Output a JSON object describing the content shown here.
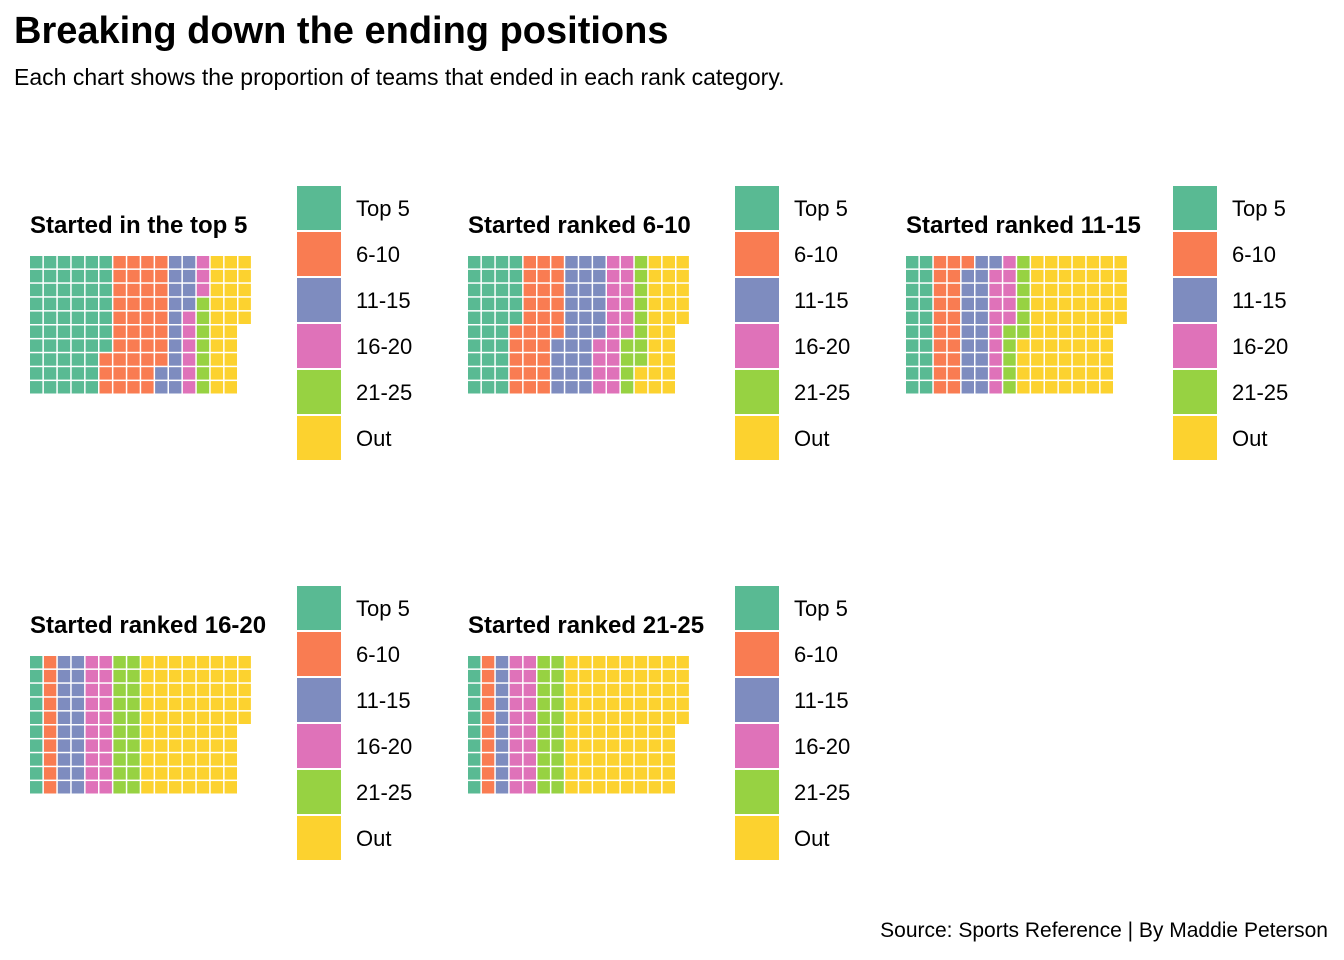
{
  "title": "Breaking down the ending positions",
  "subtitle": "Each chart shows the proportion of teams that ended in each rank category.",
  "caption": "Source: Sports Reference | By Maddie Peterson",
  "legend": {
    "categories": [
      "Top 5",
      "6-10",
      "11-15",
      "16-20",
      "21-25",
      "Out"
    ],
    "colors": [
      "#59BA93",
      "#F97C52",
      "#7E8CBF",
      "#DF72B9",
      "#97D242",
      "#FCD22F"
    ]
  },
  "chart_data": [
    {
      "type": "waffle",
      "title": "Started in the top 5",
      "categories": [
        "Top 5",
        "6-10",
        "11-15",
        "16-20",
        "21-25",
        "Out"
      ],
      "values": [
        57,
        41,
        16,
        9,
        7,
        25
      ]
    },
    {
      "type": "waffle",
      "title": "Started ranked 6-10",
      "categories": [
        "Top 5",
        "6-10",
        "11-15",
        "16-20",
        "21-25",
        "Out"
      ],
      "values": [
        35,
        31,
        30,
        20,
        12,
        27
      ]
    },
    {
      "type": "waffle",
      "title": "Started ranked 11-15",
      "categories": [
        "Top 5",
        "6-10",
        "11-15",
        "16-20",
        "21-25",
        "Out"
      ],
      "values": [
        20,
        21,
        20,
        14,
        11,
        69
      ]
    },
    {
      "type": "waffle",
      "title": "Started ranked 16-20",
      "categories": [
        "Top 5",
        "6-10",
        "11-15",
        "16-20",
        "21-25",
        "Out"
      ],
      "values": [
        10,
        10,
        20,
        20,
        20,
        75
      ]
    },
    {
      "type": "waffle",
      "title": "Started ranked 21-25",
      "categories": [
        "Top 5",
        "6-10",
        "11-15",
        "16-20",
        "21-25",
        "Out"
      ],
      "values": [
        10,
        10,
        10,
        20,
        20,
        85
      ]
    }
  ]
}
